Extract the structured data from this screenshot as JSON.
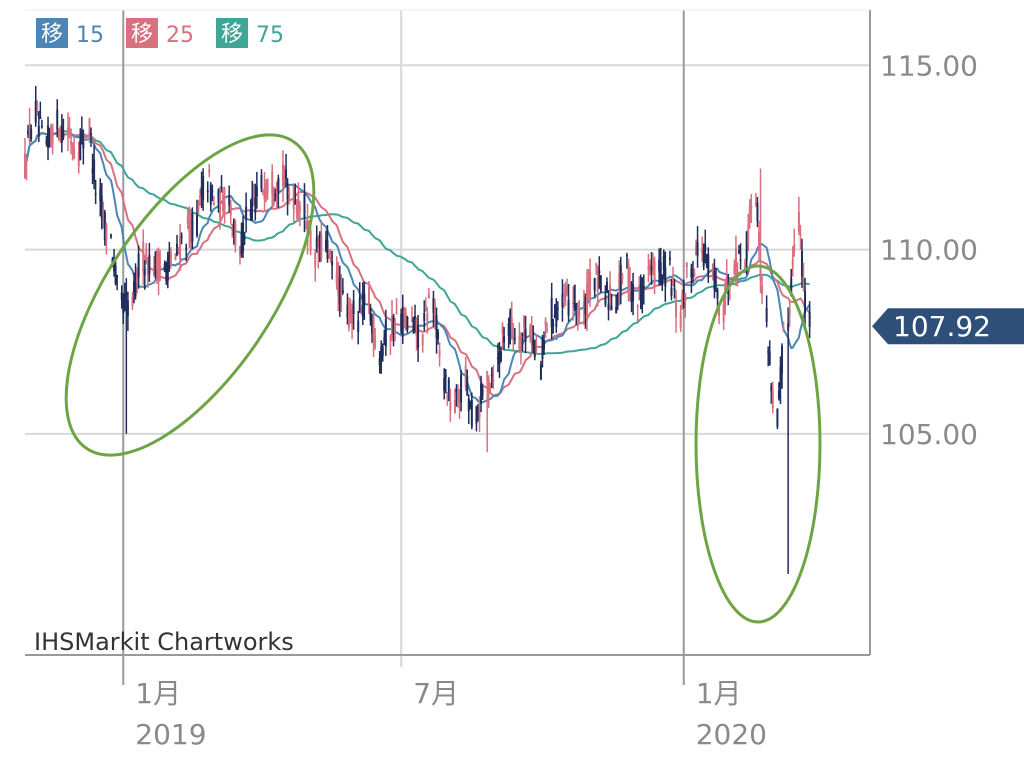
{
  "colors": {
    "up": "#d9707f",
    "down": "#1f2d5c",
    "ma15": "#4a86b8",
    "ma25": "#d9707f",
    "ma75": "#3fa596",
    "grid": "#d8d8d8",
    "axis": "#999999",
    "price_tag": "#2e5078",
    "annotation": "#6da544"
  },
  "chart_data": {
    "type": "candlestick",
    "title": "",
    "xlabel": "",
    "ylabel": "",
    "ylim": [
      99,
      116.5
    ],
    "y_ticks": [
      115.0,
      110.0,
      105.0
    ],
    "y_tick_labels": [
      "115.00",
      "110.00",
      "105.00"
    ],
    "x_ticks": [
      {
        "date": "2019-01-01",
        "month_label": "1月",
        "year_label": "2019"
      },
      {
        "date": "2019-07-01",
        "month_label": "7月",
        "year_label": ""
      },
      {
        "date": "2020-01-01",
        "month_label": "1月",
        "year_label": "2020"
      }
    ],
    "x_range": [
      "2018-10-29",
      "2020-04-30"
    ],
    "last_price": "107.92",
    "legend": [
      {
        "label": "移",
        "period": "15",
        "series": "ma15"
      },
      {
        "label": "移",
        "period": "25",
        "series": "ma25"
      },
      {
        "label": "移",
        "period": "75",
        "series": "ma75"
      }
    ],
    "series_close": [
      [
        "2018-10-29",
        112.3
      ],
      [
        "2018-11-05",
        113.7
      ],
      [
        "2018-11-12",
        112.8
      ],
      [
        "2018-11-19",
        113.4
      ],
      [
        "2018-11-26",
        113.2
      ],
      [
        "2018-12-03",
        112.7
      ],
      [
        "2018-12-10",
        113.3
      ],
      [
        "2018-12-17",
        111.3
      ],
      [
        "2018-12-24",
        110.3
      ],
      [
        "2018-12-31",
        108.5
      ],
      [
        "2019-01-07",
        108.5
      ],
      [
        "2019-01-14",
        109.8
      ],
      [
        "2019-01-21",
        109.6
      ],
      [
        "2019-01-28",
        109.5
      ],
      [
        "2019-02-04",
        109.7
      ],
      [
        "2019-02-11",
        110.4
      ],
      [
        "2019-02-18",
        110.7
      ],
      [
        "2019-02-25",
        111.9
      ],
      [
        "2019-03-04",
        111.2
      ],
      [
        "2019-03-11",
        111.5
      ],
      [
        "2019-03-18",
        110.0
      ],
      [
        "2019-03-25",
        110.9
      ],
      [
        "2019-04-01",
        111.7
      ],
      [
        "2019-04-08",
        111.9
      ],
      [
        "2019-04-15",
        111.9
      ],
      [
        "2019-04-22",
        111.5
      ],
      [
        "2019-04-29",
        111.1
      ],
      [
        "2019-05-06",
        109.9
      ],
      [
        "2019-05-13",
        110.1
      ],
      [
        "2019-05-20",
        109.3
      ],
      [
        "2019-05-27",
        108.3
      ],
      [
        "2019-06-03",
        108.2
      ],
      [
        "2019-06-10",
        108.6
      ],
      [
        "2019-06-17",
        107.3
      ],
      [
        "2019-06-24",
        107.8
      ],
      [
        "2019-07-01",
        108.2
      ],
      [
        "2019-07-08",
        107.9
      ],
      [
        "2019-07-15",
        107.7
      ],
      [
        "2019-07-22",
        108.7
      ],
      [
        "2019-07-29",
        106.6
      ],
      [
        "2019-08-05",
        105.7
      ],
      [
        "2019-08-12",
        106.4
      ],
      [
        "2019-08-19",
        105.4
      ],
      [
        "2019-08-26",
        106.3
      ],
      [
        "2019-09-02",
        106.9
      ],
      [
        "2019-09-09",
        108.1
      ],
      [
        "2019-09-16",
        107.6
      ],
      [
        "2019-09-23",
        107.9
      ],
      [
        "2019-09-30",
        106.9
      ],
      [
        "2019-10-07",
        108.3
      ],
      [
        "2019-10-14",
        108.4
      ],
      [
        "2019-10-21",
        108.7
      ],
      [
        "2019-10-28",
        108.2
      ],
      [
        "2019-11-04",
        109.3
      ],
      [
        "2019-11-11",
        108.8
      ],
      [
        "2019-11-18",
        108.7
      ],
      [
        "2019-11-25",
        109.5
      ],
      [
        "2019-12-02",
        108.6
      ],
      [
        "2019-12-09",
        109.4
      ],
      [
        "2019-12-16",
        109.4
      ],
      [
        "2019-12-23",
        109.4
      ],
      [
        "2019-12-30",
        108.1
      ],
      [
        "2020-01-06",
        109.5
      ],
      [
        "2020-01-13",
        110.1
      ],
      [
        "2020-01-20",
        109.3
      ],
      [
        "2020-01-27",
        108.4
      ],
      [
        "2020-02-03",
        109.7
      ],
      [
        "2020-02-10",
        109.8
      ],
      [
        "2020-02-17",
        111.6
      ],
      [
        "2020-02-24",
        108.1
      ],
      [
        "2020-03-02",
        105.4
      ],
      [
        "2020-03-09",
        108.0
      ],
      [
        "2020-03-16",
        110.9
      ],
      [
        "2020-03-23",
        107.9
      ]
    ]
  },
  "watermark": "IHSMarkit Chartworks"
}
